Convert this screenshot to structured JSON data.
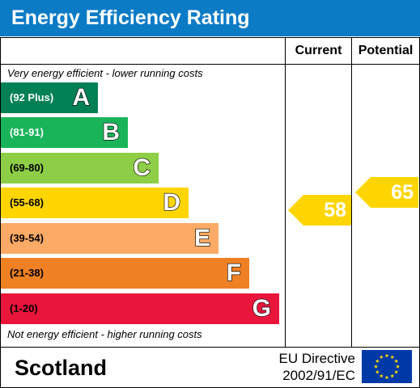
{
  "header": {
    "title": "Energy Efficiency Rating"
  },
  "columns": {
    "current": "Current",
    "potential": "Potential"
  },
  "notes": {
    "top": "Very energy efficient - lower running costs",
    "bottom": "Not energy efficient - higher running costs"
  },
  "bands": [
    {
      "range": "(92 Plus)",
      "letter": "A",
      "color": "#008054",
      "text_color": "#ffffff"
    },
    {
      "range": "(81-91)",
      "letter": "B",
      "color": "#19b459",
      "text_color": "#ffffff"
    },
    {
      "range": "(69-80)",
      "letter": "C",
      "color": "#8dce46",
      "text_color": "#000000"
    },
    {
      "range": "(55-68)",
      "letter": "D",
      "color": "#ffd500",
      "text_color": "#000000"
    },
    {
      "range": "(39-54)",
      "letter": "E",
      "color": "#fcaa65",
      "text_color": "#000000"
    },
    {
      "range": "(21-38)",
      "letter": "F",
      "color": "#ef8023",
      "text_color": "#000000"
    },
    {
      "range": "(1-20)",
      "letter": "G",
      "color": "#e9153b",
      "text_color": "#000000"
    }
  ],
  "ratings": {
    "current": {
      "value": "58",
      "band": "D",
      "color": "#ffd500"
    },
    "potential": {
      "value": "65",
      "band": "D",
      "color": "#ffd500"
    }
  },
  "footer": {
    "region": "Scotland",
    "directive_line1": "EU Directive",
    "directive_line2": "2002/91/EC",
    "flag_icon": "eu-flag-icon",
    "flag_color": "#0039a6",
    "star_color": "#ffdd00"
  }
}
